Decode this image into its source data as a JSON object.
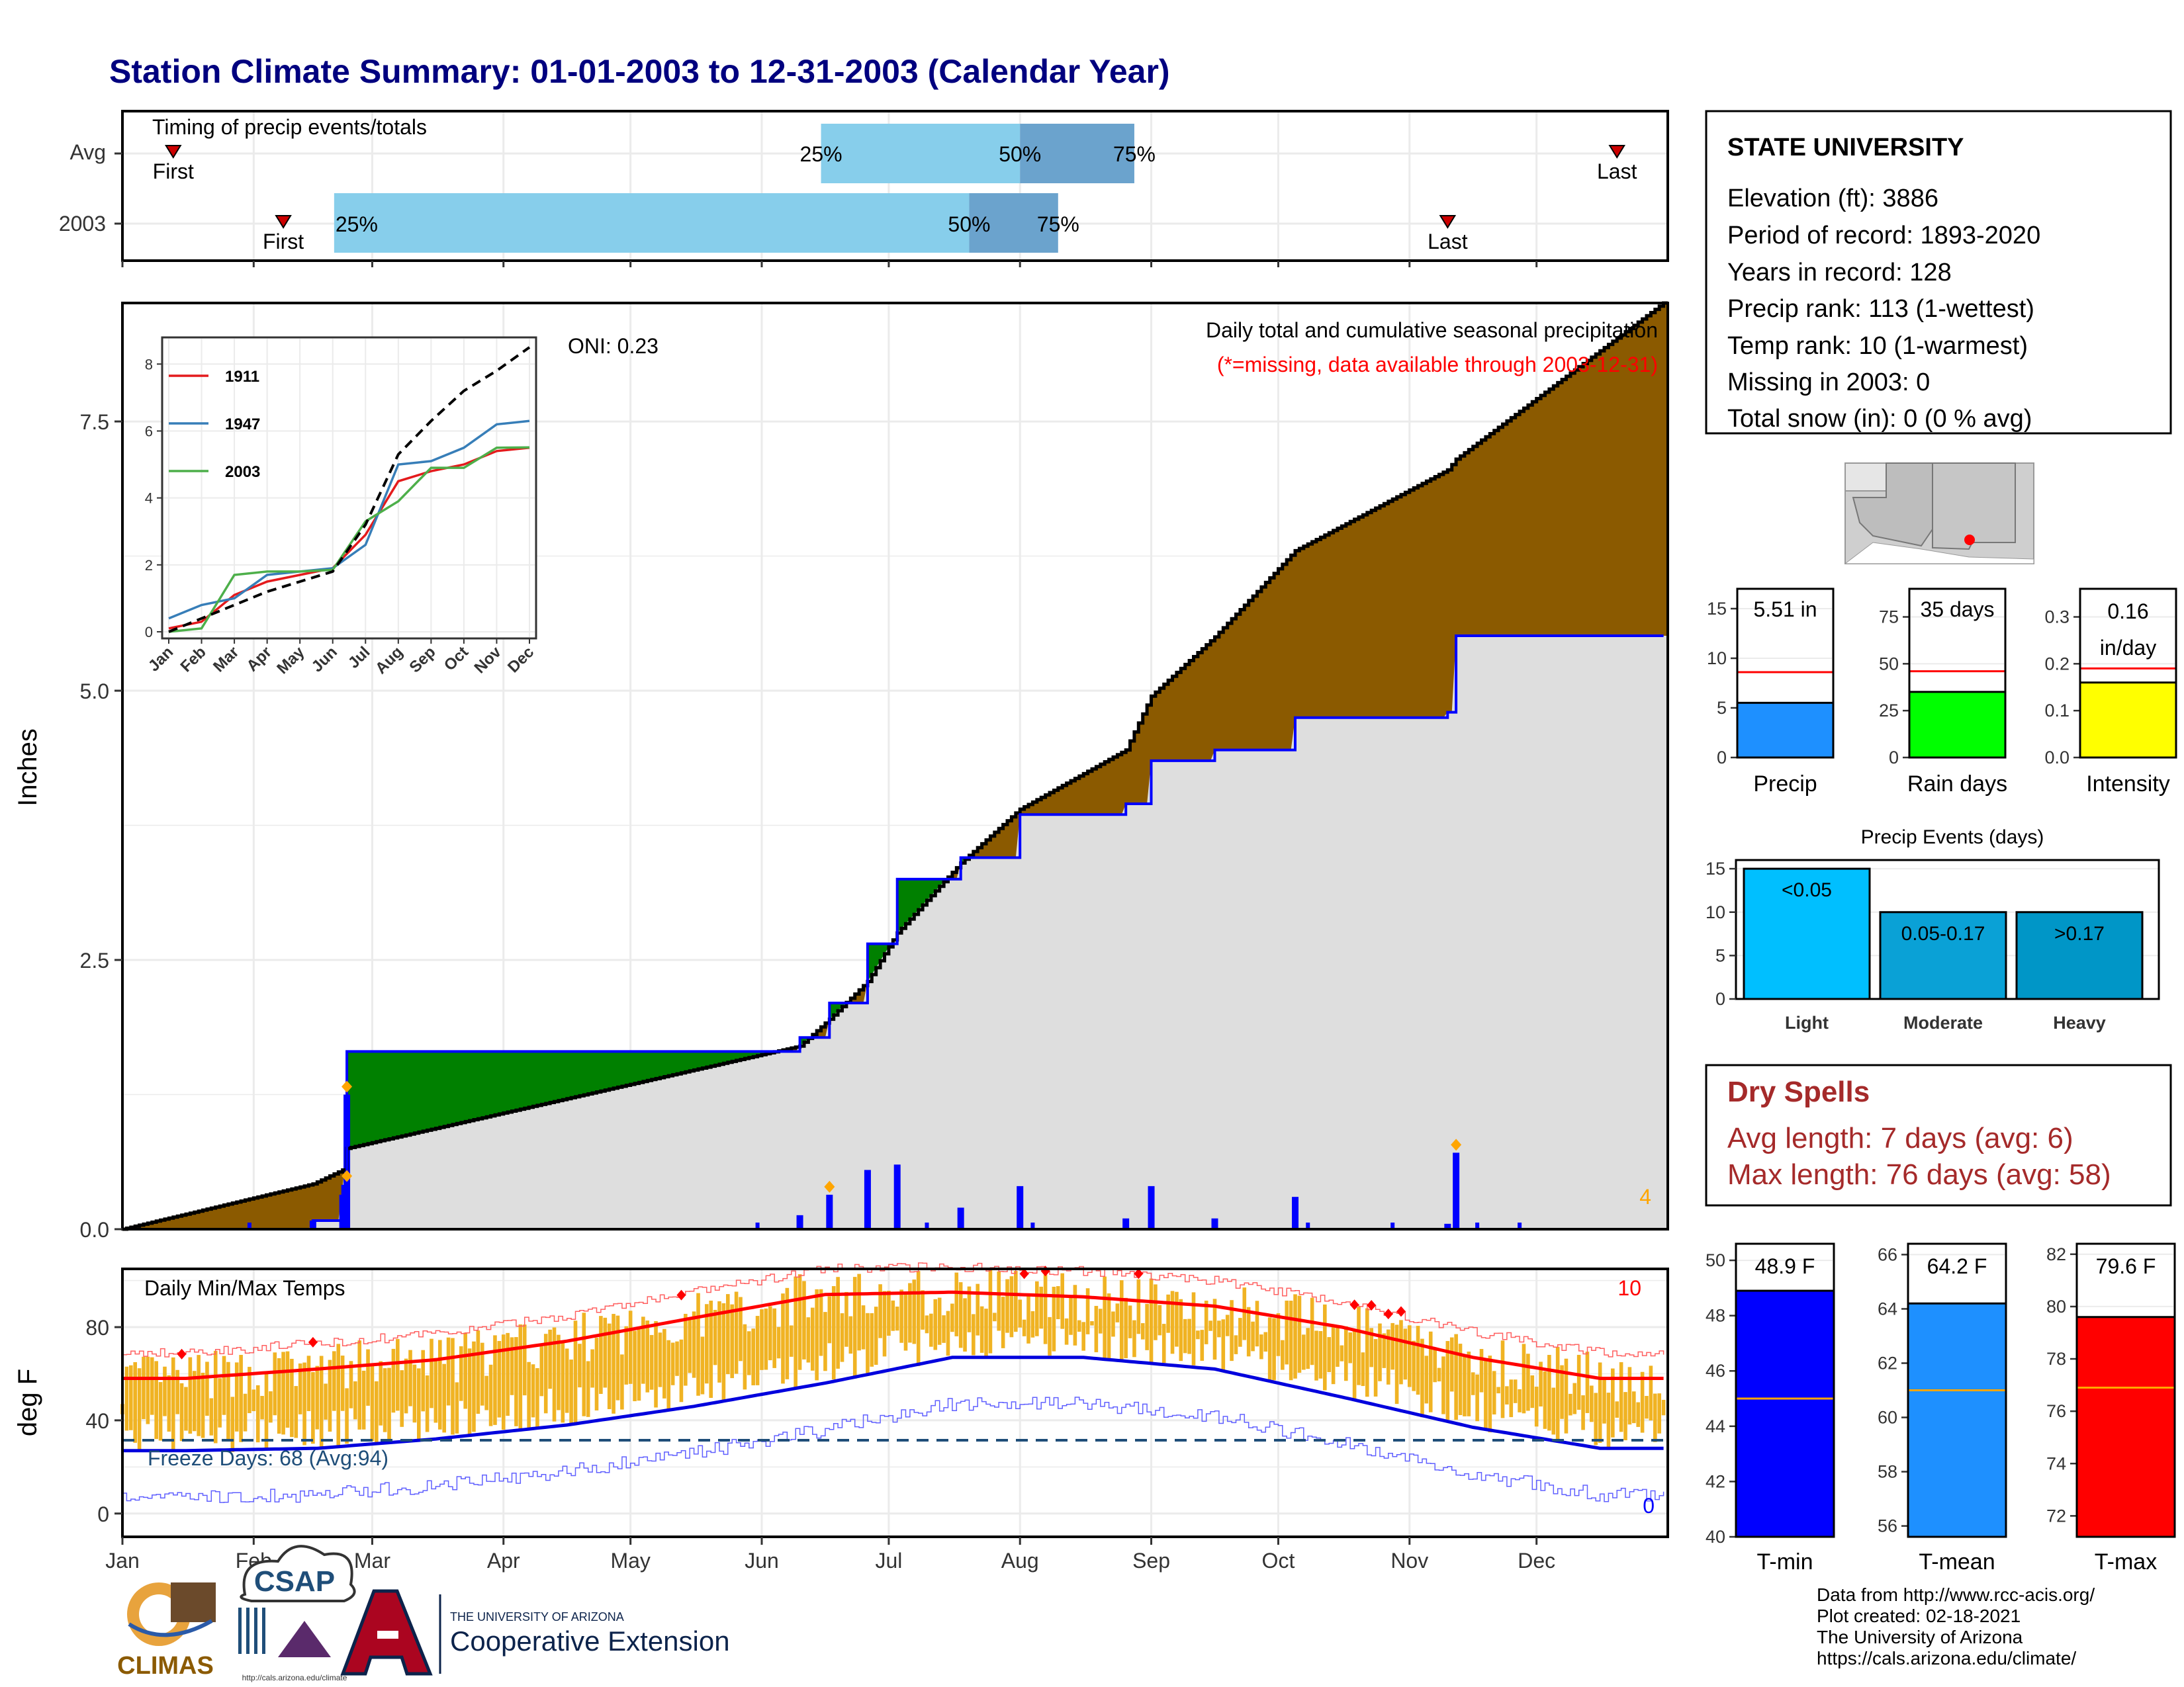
{
  "title": "Station Climate Summary: 01-01-2003 to 12-31-2003 (Calendar Year)",
  "months": [
    "Jan",
    "Feb",
    "Mar",
    "Apr",
    "May",
    "Jun",
    "Jul",
    "Aug",
    "Sep",
    "Oct",
    "Nov",
    "Dec"
  ],
  "colors": {
    "title": "#00007f",
    "light_blue": "#87ceeb",
    "steel_blue": "#6ba3cd",
    "brown": "#8b5a00",
    "green": "#008000",
    "gray_fill": "#dedede",
    "blue": "#0000ff",
    "orange": "#ffa500",
    "temp_bar": "#f0b323",
    "red": "#ff0000",
    "dry_spell": "#a52a2a"
  },
  "timing_panel": {
    "label": "Timing of precip events/totals",
    "rows": [
      "Avg",
      "2003"
    ],
    "pct_labels": [
      "25%",
      "50%",
      "75%"
    ],
    "first_label": "First",
    "last_label": "Last"
  },
  "main_panel": {
    "ylabel": "Inches",
    "yticks": [
      "0.0",
      "2.5",
      "5.0",
      "7.5"
    ],
    "caption": "Daily total and cumulative seasonal precipitation",
    "missing_note": "(*=missing, data available through 2003-12-31)",
    "oni": "ONI: 0.23",
    "corner_count": "4"
  },
  "inset": {
    "yticks": [
      "0",
      "2",
      "4",
      "6",
      "8"
    ],
    "legend": [
      {
        "label": "1911",
        "color": "#e41a1c"
      },
      {
        "label": "1947",
        "color": "#377eb8"
      },
      {
        "label": "2003",
        "color": "#4daf4a"
      }
    ]
  },
  "temp_panel": {
    "label": "Daily Min/Max Temps",
    "ylabel": "deg F",
    "yticks": [
      "0",
      "40",
      "80"
    ],
    "freeze": "Freeze Days: 68 (Avg:94)",
    "record_high_count": "10",
    "record_low_count": "0"
  },
  "station": {
    "name": "STATE UNIVERSITY",
    "lines": [
      "Elevation (ft): 3886",
      "Period of record: 1893-2020",
      "Years in record: 128",
      "Precip rank: 113 (1-wettest)",
      "Temp rank: 10 (1-warmest)",
      "Missing in 2003: 0",
      "Total snow (in): 0 (0 % avg)"
    ]
  },
  "summary_bars": [
    {
      "label": "Precip",
      "value_text": "5.51 in",
      "yticks": [
        "0",
        "5",
        "10",
        "15"
      ]
    },
    {
      "label": "Rain days",
      "value_text": "35 days",
      "yticks": [
        "0",
        "25",
        "50",
        "75"
      ]
    },
    {
      "label": "Intensity",
      "value_text": "0.16 in/day",
      "yticks": [
        "0.0",
        "0.1",
        "0.2",
        "0.3"
      ]
    }
  ],
  "events": {
    "title": "Precip Events (days)",
    "yticks": [
      "0",
      "5",
      "10",
      "15"
    ],
    "bars": [
      {
        "label": "Light",
        "inner": "<0.05",
        "value": 15
      },
      {
        "label": "Moderate",
        "inner": "0.05-0.17",
        "value": 10
      },
      {
        "label": "Heavy",
        "inner": ">0.17",
        "value": 10
      }
    ]
  },
  "dry_spells": {
    "title": "Dry Spells",
    "avg": "Avg length: 7 days (avg: 6)",
    "max": "Max length: 76 days (avg: 58)"
  },
  "temp_bars": [
    {
      "label": "T-min",
      "value_text": "48.9 F",
      "yticks": [
        "40",
        "42",
        "44",
        "46",
        "48",
        "50"
      ]
    },
    {
      "label": "T-mean",
      "value_text": "64.2 F",
      "yticks": [
        "56",
        "58",
        "60",
        "62",
        "64",
        "66"
      ]
    },
    {
      "label": "T-max",
      "value_text": "79.6 F",
      "yticks": [
        "72",
        "74",
        "76",
        "78",
        "80",
        "82"
      ]
    }
  ],
  "logos": {
    "climas": "CLIMAS",
    "csap": "CSAP",
    "csap_url": "http://cals.arizona.edu/climate",
    "ua_small": "THE UNIVERSITY OF ARIZONA",
    "ua_big": "Cooperative Extension"
  },
  "credits": [
    "Data from http://www.rcc-acis.org/",
    "Plot created: 02-18-2021",
    "The University of Arizona",
    "https://cals.arizona.edu/climate/"
  ],
  "chart_data": [
    {
      "type": "bar",
      "title": "Timing of precip events/totals",
      "categories": [
        "Avg",
        "2003"
      ],
      "series": [
        {
          "name": "First",
          "values": [
            "01-13",
            "02-08"
          ]
        },
        {
          "name": "25%",
          "values": [
            "06-15",
            "02-20"
          ]
        },
        {
          "name": "50%",
          "values": [
            "08-01",
            "07-20"
          ]
        },
        {
          "name": "75%",
          "values": [
            "08-28",
            "08-10"
          ]
        },
        {
          "name": "Last",
          "values": [
            "12-20",
            "11-10"
          ]
        }
      ]
    },
    {
      "type": "area",
      "title": "Daily total and cumulative seasonal precipitation",
      "ylabel": "Inches",
      "ylim": [
        0,
        8.6
      ],
      "x": [
        "01-01",
        "02-15",
        "02-22",
        "02-23",
        "06-10",
        "06-17",
        "06-26",
        "07-03",
        "07-18",
        "08-01",
        "08-26",
        "09-01",
        "09-16",
        "10-05",
        "11-10",
        "11-12",
        "12-31"
      ],
      "series": [
        {
          "name": "cumulative average",
          "values": [
            0.0,
            0.42,
            0.55,
            0.75,
            1.7,
            1.95,
            2.3,
            2.75,
            3.4,
            3.9,
            4.45,
            4.95,
            5.5,
            6.3,
            7.05,
            7.15,
            8.6
          ]
        },
        {
          "name": "cumulative 2003",
          "values": [
            0.0,
            0.08,
            0.4,
            1.65,
            1.78,
            2.1,
            2.65,
            3.25,
            3.45,
            3.85,
            3.95,
            4.35,
            4.45,
            4.75,
            4.8,
            5.51,
            5.51
          ]
        }
      ]
    },
    {
      "type": "line",
      "title": "inset: cumulative precipitation",
      "x": [
        "Jan",
        "Feb",
        "Mar",
        "Apr",
        "May",
        "Jun",
        "Jul",
        "Aug",
        "Sep",
        "Oct",
        "Nov",
        "Dec"
      ],
      "ylim": [
        0,
        8.5
      ],
      "series": [
        {
          "name": "1911",
          "values": [
            0.1,
            0.3,
            1.1,
            1.5,
            1.7,
            1.9,
            2.9,
            4.5,
            4.8,
            5.0,
            5.4,
            5.5
          ]
        },
        {
          "name": "1947",
          "values": [
            0.4,
            0.8,
            1.0,
            1.7,
            1.8,
            1.9,
            2.6,
            5.0,
            5.1,
            5.5,
            6.2,
            6.3
          ]
        },
        {
          "name": "2003",
          "values": [
            0.0,
            0.1,
            1.7,
            1.8,
            1.8,
            1.85,
            3.3,
            3.9,
            4.9,
            4.9,
            5.5,
            5.51
          ]
        },
        {
          "name": "average",
          "values": [
            0.0,
            0.4,
            0.8,
            1.2,
            1.5,
            1.8,
            3.2,
            5.3,
            6.3,
            7.2,
            7.8,
            8.5
          ]
        }
      ]
    },
    {
      "type": "line",
      "title": "Daily Min/Max Temps",
      "ylabel": "deg F",
      "ylim": [
        -10,
        105
      ],
      "x": [
        "Jan",
        "Feb",
        "Mar",
        "Apr",
        "May",
        "Jun",
        "Jul",
        "Aug",
        "Sep",
        "Oct",
        "Nov",
        "Dec"
      ],
      "series": [
        {
          "name": "normal max",
          "values": [
            58,
            62,
            66,
            74,
            84,
            94,
            95,
            93,
            89,
            80,
            67,
            58
          ]
        },
        {
          "name": "normal min",
          "values": [
            27,
            28,
            32,
            38,
            46,
            56,
            67,
            67,
            62,
            50,
            37,
            28
          ]
        },
        {
          "name": "freeze threshold",
          "values": [
            32,
            32,
            32,
            32,
            32,
            32,
            32,
            32,
            32,
            32,
            32,
            32
          ]
        }
      ]
    },
    {
      "type": "bar",
      "categories": [
        "Precip",
        "Rain days",
        "Intensity"
      ],
      "series": [
        {
          "name": "2003",
          "values": [
            5.51,
            35,
            0.16
          ]
        },
        {
          "name": "average",
          "values": [
            8.6,
            46,
            0.19
          ]
        }
      ]
    },
    {
      "type": "bar",
      "title": "Precip Events (days)",
      "categories": [
        "Light",
        "Moderate",
        "Heavy"
      ],
      "values": [
        15,
        10,
        10
      ],
      "ylim": [
        0,
        16
      ]
    },
    {
      "type": "bar",
      "categories": [
        "T-min",
        "T-mean",
        "T-max"
      ],
      "series": [
        {
          "name": "2003",
          "values": [
            48.9,
            64.2,
            79.6
          ]
        },
        {
          "name": "average",
          "values": [
            45.0,
            61.0,
            76.9
          ]
        }
      ]
    }
  ]
}
